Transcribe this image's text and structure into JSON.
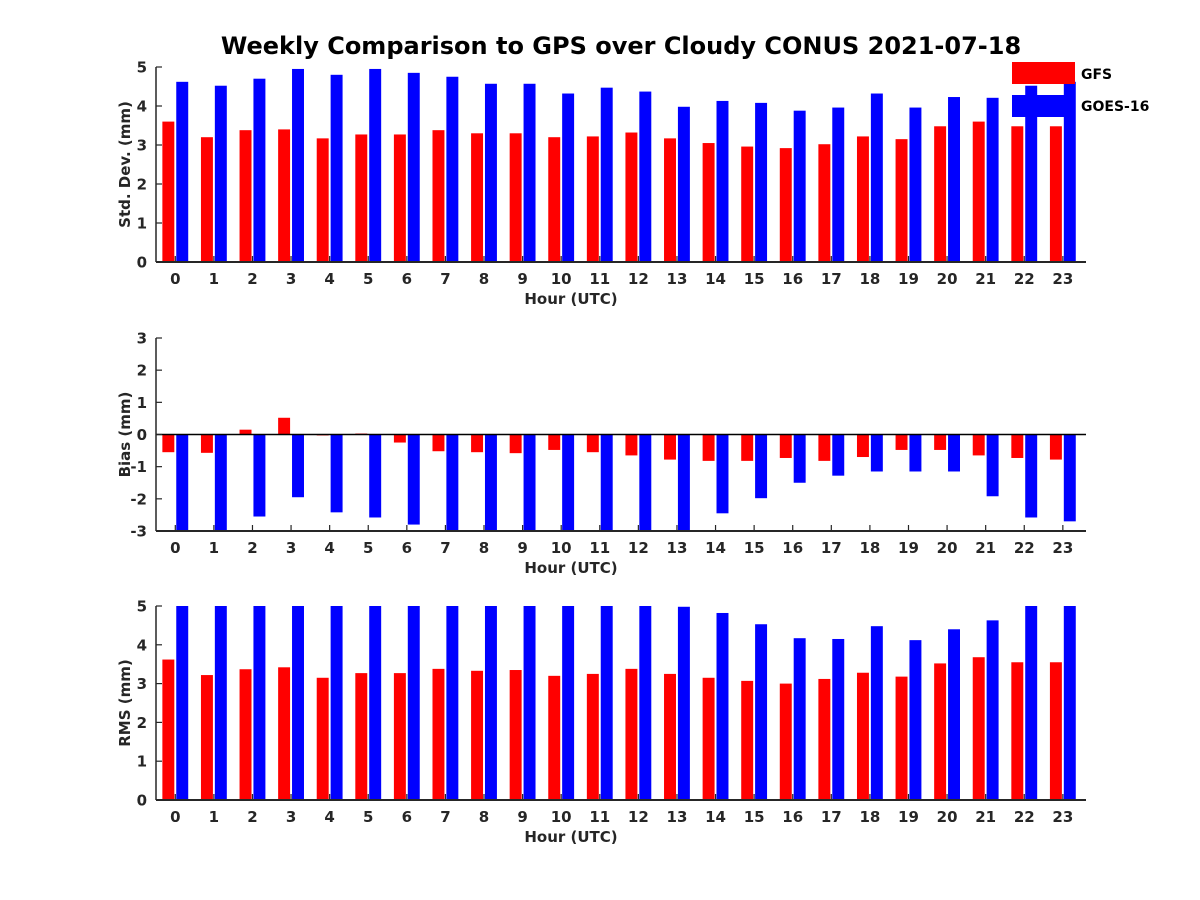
{
  "figure": {
    "title": "Weekly Comparison to GPS over Cloudy CONUS 2021-07-18"
  },
  "legend": {
    "placement": "top-right",
    "entries": [
      {
        "label": "GFS",
        "color": "#ff0000"
      },
      {
        "label": "GOES-16",
        "color": "#0000ff"
      }
    ]
  },
  "chart_data": [
    {
      "type": "bar",
      "xlabel": "Hour (UTC)",
      "ylabel": "Std. Dev. (mm)",
      "ylim": [
        0,
        5
      ],
      "yticks": [
        0,
        1,
        2,
        3,
        4,
        5
      ],
      "categories": [
        "0",
        "1",
        "2",
        "3",
        "4",
        "5",
        "6",
        "7",
        "8",
        "9",
        "10",
        "11",
        "12",
        "13",
        "14",
        "15",
        "16",
        "17",
        "18",
        "19",
        "20",
        "21",
        "22",
        "23"
      ],
      "series": [
        {
          "name": "GFS",
          "color": "#ff0000",
          "values": [
            3.6,
            3.2,
            3.38,
            3.4,
            3.17,
            3.27,
            3.27,
            3.38,
            3.3,
            3.3,
            3.2,
            3.22,
            3.32,
            3.17,
            3.05,
            2.96,
            2.92,
            3.02,
            3.22,
            3.15,
            3.48,
            3.6,
            3.48,
            3.48
          ]
        },
        {
          "name": "GOES-16",
          "color": "#0000ff",
          "values": [
            4.62,
            4.52,
            4.7,
            4.95,
            4.8,
            4.95,
            4.85,
            4.75,
            4.57,
            4.57,
            4.32,
            4.47,
            4.37,
            3.98,
            4.13,
            4.08,
            3.88,
            3.96,
            4.32,
            3.96,
            4.23,
            4.21,
            4.52,
            4.62
          ]
        }
      ]
    },
    {
      "type": "bar",
      "xlabel": "Hour (UTC)",
      "ylabel": "Bias (mm)",
      "ylim": [
        -3,
        3
      ],
      "yticks": [
        -3,
        -2,
        -1,
        0,
        1,
        2,
        3
      ],
      "zero_line": true,
      "categories": [
        "0",
        "1",
        "2",
        "3",
        "4",
        "5",
        "6",
        "7",
        "8",
        "9",
        "10",
        "11",
        "12",
        "13",
        "14",
        "15",
        "16",
        "17",
        "18",
        "19",
        "20",
        "21",
        "22",
        "23"
      ],
      "series": [
        {
          "name": "GFS",
          "color": "#ff0000",
          "values": [
            -0.55,
            -0.57,
            0.15,
            0.52,
            -0.03,
            0.03,
            -0.25,
            -0.52,
            -0.55,
            -0.58,
            -0.48,
            -0.55,
            -0.65,
            -0.78,
            -0.82,
            -0.82,
            -0.73,
            -0.82,
            -0.7,
            -0.48,
            -0.48,
            -0.65,
            -0.73,
            -0.78
          ]
        },
        {
          "name": "GOES-16",
          "color": "#0000ff",
          "values": [
            -3.0,
            -3.0,
            -2.55,
            -1.95,
            -2.42,
            -2.58,
            -2.8,
            -3.0,
            -3.0,
            -3.0,
            -3.0,
            -3.0,
            -3.0,
            -3.0,
            -2.45,
            -1.98,
            -1.5,
            -1.28,
            -1.15,
            -1.15,
            -1.15,
            -1.92,
            -2.58,
            -2.7
          ]
        }
      ]
    },
    {
      "type": "bar",
      "xlabel": "Hour (UTC)",
      "ylabel": "RMS (mm)",
      "ylim": [
        0,
        5
      ],
      "yticks": [
        0,
        1,
        2,
        3,
        4,
        5
      ],
      "categories": [
        "0",
        "1",
        "2",
        "3",
        "4",
        "5",
        "6",
        "7",
        "8",
        "9",
        "10",
        "11",
        "12",
        "13",
        "14",
        "15",
        "16",
        "17",
        "18",
        "19",
        "20",
        "21",
        "22",
        "23"
      ],
      "series": [
        {
          "name": "GFS",
          "color": "#ff0000",
          "values": [
            3.62,
            3.22,
            3.37,
            3.42,
            3.15,
            3.27,
            3.27,
            3.38,
            3.33,
            3.35,
            3.2,
            3.25,
            3.38,
            3.25,
            3.15,
            3.07,
            3.0,
            3.12,
            3.28,
            3.18,
            3.52,
            3.68,
            3.55,
            3.55
          ]
        },
        {
          "name": "GOES-16",
          "color": "#0000ff",
          "values": [
            5.0,
            5.0,
            5.0,
            5.0,
            5.0,
            5.0,
            5.0,
            5.0,
            5.0,
            5.0,
            5.0,
            5.0,
            5.0,
            4.98,
            4.82,
            4.53,
            4.17,
            4.15,
            4.48,
            4.12,
            4.4,
            4.63,
            5.0,
            5.0
          ]
        }
      ]
    }
  ]
}
